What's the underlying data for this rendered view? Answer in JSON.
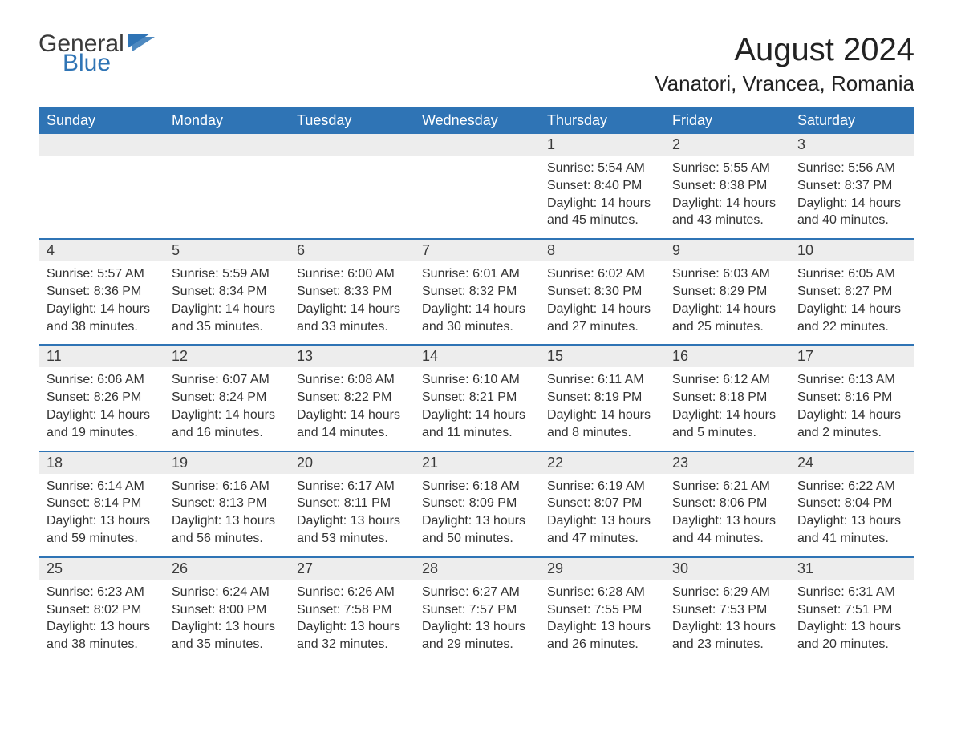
{
  "logo": {
    "textGray": "General",
    "textBlue": "Blue",
    "shapeColor": "#2f74b5",
    "grayColor": "#3a3a3a"
  },
  "header": {
    "monthTitle": "August 2024",
    "location": "Vanatori, Vrancea, Romania"
  },
  "calendar": {
    "headerBg": "#2f74b5",
    "headerFg": "#ffffff",
    "weekBorderColor": "#2f74b5",
    "dayNumBg": "#ededed",
    "textColor": "#333333",
    "dayNames": [
      "Sunday",
      "Monday",
      "Tuesday",
      "Wednesday",
      "Thursday",
      "Friday",
      "Saturday"
    ],
    "weeks": [
      [
        {
          "empty": true
        },
        {
          "empty": true
        },
        {
          "empty": true
        },
        {
          "empty": true
        },
        {
          "day": "1",
          "sunrise": "Sunrise: 5:54 AM",
          "sunset": "Sunset: 8:40 PM",
          "daylight1": "Daylight: 14 hours",
          "daylight2": "and 45 minutes."
        },
        {
          "day": "2",
          "sunrise": "Sunrise: 5:55 AM",
          "sunset": "Sunset: 8:38 PM",
          "daylight1": "Daylight: 14 hours",
          "daylight2": "and 43 minutes."
        },
        {
          "day": "3",
          "sunrise": "Sunrise: 5:56 AM",
          "sunset": "Sunset: 8:37 PM",
          "daylight1": "Daylight: 14 hours",
          "daylight2": "and 40 minutes."
        }
      ],
      [
        {
          "day": "4",
          "sunrise": "Sunrise: 5:57 AM",
          "sunset": "Sunset: 8:36 PM",
          "daylight1": "Daylight: 14 hours",
          "daylight2": "and 38 minutes."
        },
        {
          "day": "5",
          "sunrise": "Sunrise: 5:59 AM",
          "sunset": "Sunset: 8:34 PM",
          "daylight1": "Daylight: 14 hours",
          "daylight2": "and 35 minutes."
        },
        {
          "day": "6",
          "sunrise": "Sunrise: 6:00 AM",
          "sunset": "Sunset: 8:33 PM",
          "daylight1": "Daylight: 14 hours",
          "daylight2": "and 33 minutes."
        },
        {
          "day": "7",
          "sunrise": "Sunrise: 6:01 AM",
          "sunset": "Sunset: 8:32 PM",
          "daylight1": "Daylight: 14 hours",
          "daylight2": "and 30 minutes."
        },
        {
          "day": "8",
          "sunrise": "Sunrise: 6:02 AM",
          "sunset": "Sunset: 8:30 PM",
          "daylight1": "Daylight: 14 hours",
          "daylight2": "and 27 minutes."
        },
        {
          "day": "9",
          "sunrise": "Sunrise: 6:03 AM",
          "sunset": "Sunset: 8:29 PM",
          "daylight1": "Daylight: 14 hours",
          "daylight2": "and 25 minutes."
        },
        {
          "day": "10",
          "sunrise": "Sunrise: 6:05 AM",
          "sunset": "Sunset: 8:27 PM",
          "daylight1": "Daylight: 14 hours",
          "daylight2": "and 22 minutes."
        }
      ],
      [
        {
          "day": "11",
          "sunrise": "Sunrise: 6:06 AM",
          "sunset": "Sunset: 8:26 PM",
          "daylight1": "Daylight: 14 hours",
          "daylight2": "and 19 minutes."
        },
        {
          "day": "12",
          "sunrise": "Sunrise: 6:07 AM",
          "sunset": "Sunset: 8:24 PM",
          "daylight1": "Daylight: 14 hours",
          "daylight2": "and 16 minutes."
        },
        {
          "day": "13",
          "sunrise": "Sunrise: 6:08 AM",
          "sunset": "Sunset: 8:22 PM",
          "daylight1": "Daylight: 14 hours",
          "daylight2": "and 14 minutes."
        },
        {
          "day": "14",
          "sunrise": "Sunrise: 6:10 AM",
          "sunset": "Sunset: 8:21 PM",
          "daylight1": "Daylight: 14 hours",
          "daylight2": "and 11 minutes."
        },
        {
          "day": "15",
          "sunrise": "Sunrise: 6:11 AM",
          "sunset": "Sunset: 8:19 PM",
          "daylight1": "Daylight: 14 hours",
          "daylight2": "and 8 minutes."
        },
        {
          "day": "16",
          "sunrise": "Sunrise: 6:12 AM",
          "sunset": "Sunset: 8:18 PM",
          "daylight1": "Daylight: 14 hours",
          "daylight2": "and 5 minutes."
        },
        {
          "day": "17",
          "sunrise": "Sunrise: 6:13 AM",
          "sunset": "Sunset: 8:16 PM",
          "daylight1": "Daylight: 14 hours",
          "daylight2": "and 2 minutes."
        }
      ],
      [
        {
          "day": "18",
          "sunrise": "Sunrise: 6:14 AM",
          "sunset": "Sunset: 8:14 PM",
          "daylight1": "Daylight: 13 hours",
          "daylight2": "and 59 minutes."
        },
        {
          "day": "19",
          "sunrise": "Sunrise: 6:16 AM",
          "sunset": "Sunset: 8:13 PM",
          "daylight1": "Daylight: 13 hours",
          "daylight2": "and 56 minutes."
        },
        {
          "day": "20",
          "sunrise": "Sunrise: 6:17 AM",
          "sunset": "Sunset: 8:11 PM",
          "daylight1": "Daylight: 13 hours",
          "daylight2": "and 53 minutes."
        },
        {
          "day": "21",
          "sunrise": "Sunrise: 6:18 AM",
          "sunset": "Sunset: 8:09 PM",
          "daylight1": "Daylight: 13 hours",
          "daylight2": "and 50 minutes."
        },
        {
          "day": "22",
          "sunrise": "Sunrise: 6:19 AM",
          "sunset": "Sunset: 8:07 PM",
          "daylight1": "Daylight: 13 hours",
          "daylight2": "and 47 minutes."
        },
        {
          "day": "23",
          "sunrise": "Sunrise: 6:21 AM",
          "sunset": "Sunset: 8:06 PM",
          "daylight1": "Daylight: 13 hours",
          "daylight2": "and 44 minutes."
        },
        {
          "day": "24",
          "sunrise": "Sunrise: 6:22 AM",
          "sunset": "Sunset: 8:04 PM",
          "daylight1": "Daylight: 13 hours",
          "daylight2": "and 41 minutes."
        }
      ],
      [
        {
          "day": "25",
          "sunrise": "Sunrise: 6:23 AM",
          "sunset": "Sunset: 8:02 PM",
          "daylight1": "Daylight: 13 hours",
          "daylight2": "and 38 minutes."
        },
        {
          "day": "26",
          "sunrise": "Sunrise: 6:24 AM",
          "sunset": "Sunset: 8:00 PM",
          "daylight1": "Daylight: 13 hours",
          "daylight2": "and 35 minutes."
        },
        {
          "day": "27",
          "sunrise": "Sunrise: 6:26 AM",
          "sunset": "Sunset: 7:58 PM",
          "daylight1": "Daylight: 13 hours",
          "daylight2": "and 32 minutes."
        },
        {
          "day": "28",
          "sunrise": "Sunrise: 6:27 AM",
          "sunset": "Sunset: 7:57 PM",
          "daylight1": "Daylight: 13 hours",
          "daylight2": "and 29 minutes."
        },
        {
          "day": "29",
          "sunrise": "Sunrise: 6:28 AM",
          "sunset": "Sunset: 7:55 PM",
          "daylight1": "Daylight: 13 hours",
          "daylight2": "and 26 minutes."
        },
        {
          "day": "30",
          "sunrise": "Sunrise: 6:29 AM",
          "sunset": "Sunset: 7:53 PM",
          "daylight1": "Daylight: 13 hours",
          "daylight2": "and 23 minutes."
        },
        {
          "day": "31",
          "sunrise": "Sunrise: 6:31 AM",
          "sunset": "Sunset: 7:51 PM",
          "daylight1": "Daylight: 13 hours",
          "daylight2": "and 20 minutes."
        }
      ]
    ]
  }
}
